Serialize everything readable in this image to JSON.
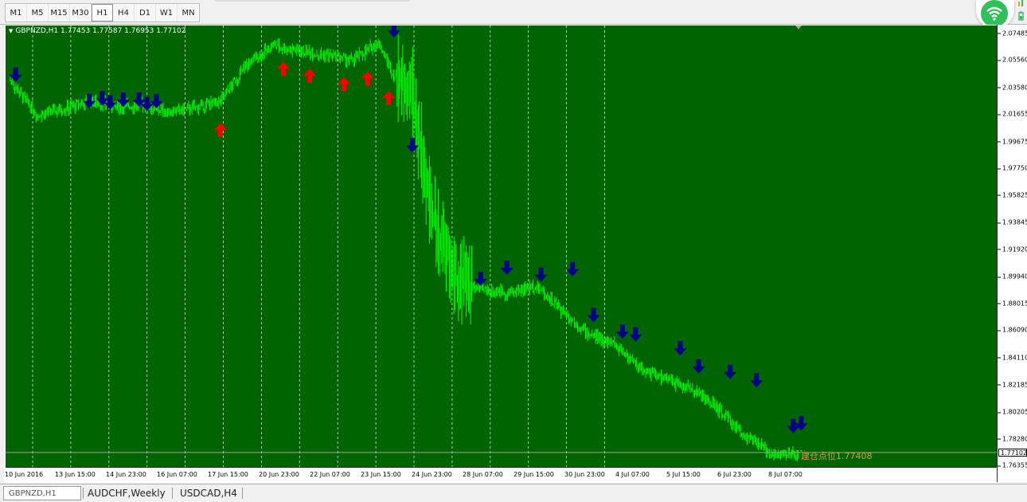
{
  "timeframes": {
    "items": [
      "M1",
      "M5",
      "M15",
      "M30",
      "H1",
      "H4",
      "D1",
      "W1",
      "MN"
    ],
    "active": "H1"
  },
  "chart": {
    "symbol_label": "GBPNZD,H1  1.77453 1.77587 1.76953 1.77102",
    "current_price": "1.77102",
    "entry_label": "建仓点位1.77408",
    "colors": {
      "background": "#006400",
      "bars": "#00ff00",
      "grid": "#ffffff",
      "sell_arrow": "#00008b",
      "buy_arrow": "#ff0000",
      "entry": "#d4a039"
    }
  },
  "chart_data": {
    "type": "line",
    "title": "GBPNZD,H1",
    "ohlc_header": {
      "open": 1.77453,
      "high": 1.77587,
      "low": 1.76953,
      "close": 1.77102
    },
    "ylim": [
      1.7625,
      2.0803
    ],
    "price_ticks": [
      "2.07485",
      "2.05560",
      "2.03580",
      "2.01655",
      "1.99675",
      "1.97750",
      "1.95825",
      "1.93845",
      "1.91920",
      "1.89940",
      "1.88015",
      "1.86090",
      "1.84110",
      "1.82185",
      "1.80205",
      "1.78280",
      "1.76355"
    ],
    "time_ticks": [
      "10 Jun 2016",
      "13 Jun 15:00",
      "14 Jun 23:00",
      "16 Jun 07:00",
      "17 Jun 15:00",
      "20 Jun 23:00",
      "22 Jun 07:00",
      "23 Jun 15:00",
      "24 Jun 23:00",
      "28 Jun 07:00",
      "29 Jun 15:00",
      "30 Jun 23:00",
      "4 Jul 07:00",
      "5 Jul 15:00",
      "6 Jul 23:00",
      "8 Jul 07:00"
    ],
    "series": [
      {
        "name": "GBPNZD,H1",
        "x": [
          0,
          0.5,
          1,
          1.5,
          2,
          2.5,
          3,
          3.5,
          4,
          4.5,
          5,
          5.5,
          6,
          6.5,
          7,
          7.3,
          7.6,
          8,
          8.5,
          9,
          9.5,
          10,
          10.5,
          11,
          11.5,
          12,
          12.5,
          13,
          13.5,
          14,
          14.5,
          15
        ],
        "y": [
          2.041,
          2.016,
          2.02,
          2.026,
          2.022,
          2.023,
          2.018,
          2.021,
          2.026,
          2.052,
          2.066,
          2.062,
          2.059,
          2.055,
          2.068,
          2.044,
          2.04,
          1.945,
          1.895,
          1.89,
          1.888,
          1.893,
          1.875,
          1.858,
          1.851,
          1.833,
          1.825,
          1.818,
          1.803,
          1.784,
          1.772,
          1.771
        ]
      }
    ],
    "sell_signals": [
      {
        "x": 0.1,
        "y": 2.042
      },
      {
        "x": 1.5,
        "y": 2.023
      },
      {
        "x": 1.75,
        "y": 2.025
      },
      {
        "x": 1.9,
        "y": 2.022
      },
      {
        "x": 2.15,
        "y": 2.024
      },
      {
        "x": 2.45,
        "y": 2.024
      },
      {
        "x": 2.6,
        "y": 2.021
      },
      {
        "x": 2.78,
        "y": 2.023
      },
      {
        "x": 7.3,
        "y": 2.074
      },
      {
        "x": 7.65,
        "y": 1.991
      },
      {
        "x": 8.95,
        "y": 1.895
      },
      {
        "x": 9.45,
        "y": 1.903
      },
      {
        "x": 10.1,
        "y": 1.898
      },
      {
        "x": 10.7,
        "y": 1.902
      },
      {
        "x": 11.1,
        "y": 1.869
      },
      {
        "x": 11.65,
        "y": 1.857
      },
      {
        "x": 11.9,
        "y": 1.855
      },
      {
        "x": 12.75,
        "y": 1.845
      },
      {
        "x": 13.1,
        "y": 1.832
      },
      {
        "x": 13.7,
        "y": 1.828
      },
      {
        "x": 14.2,
        "y": 1.822
      },
      {
        "x": 14.9,
        "y": 1.789
      },
      {
        "x": 15.05,
        "y": 1.791
      }
    ],
    "buy_signals": [
      {
        "x": 4.0,
        "y": 2.008
      },
      {
        "x": 5.2,
        "y": 2.052
      },
      {
        "x": 5.7,
        "y": 2.047
      },
      {
        "x": 6.35,
        "y": 2.041
      },
      {
        "x": 6.8,
        "y": 2.045
      },
      {
        "x": 7.2,
        "y": 2.031
      }
    ],
    "entry_level": 1.77408,
    "grid": true
  },
  "tabs": {
    "items": [
      "GBPNZD,H1",
      "AUDCHF,Weekly",
      "USDCAD,H4"
    ],
    "active_index": 0
  }
}
